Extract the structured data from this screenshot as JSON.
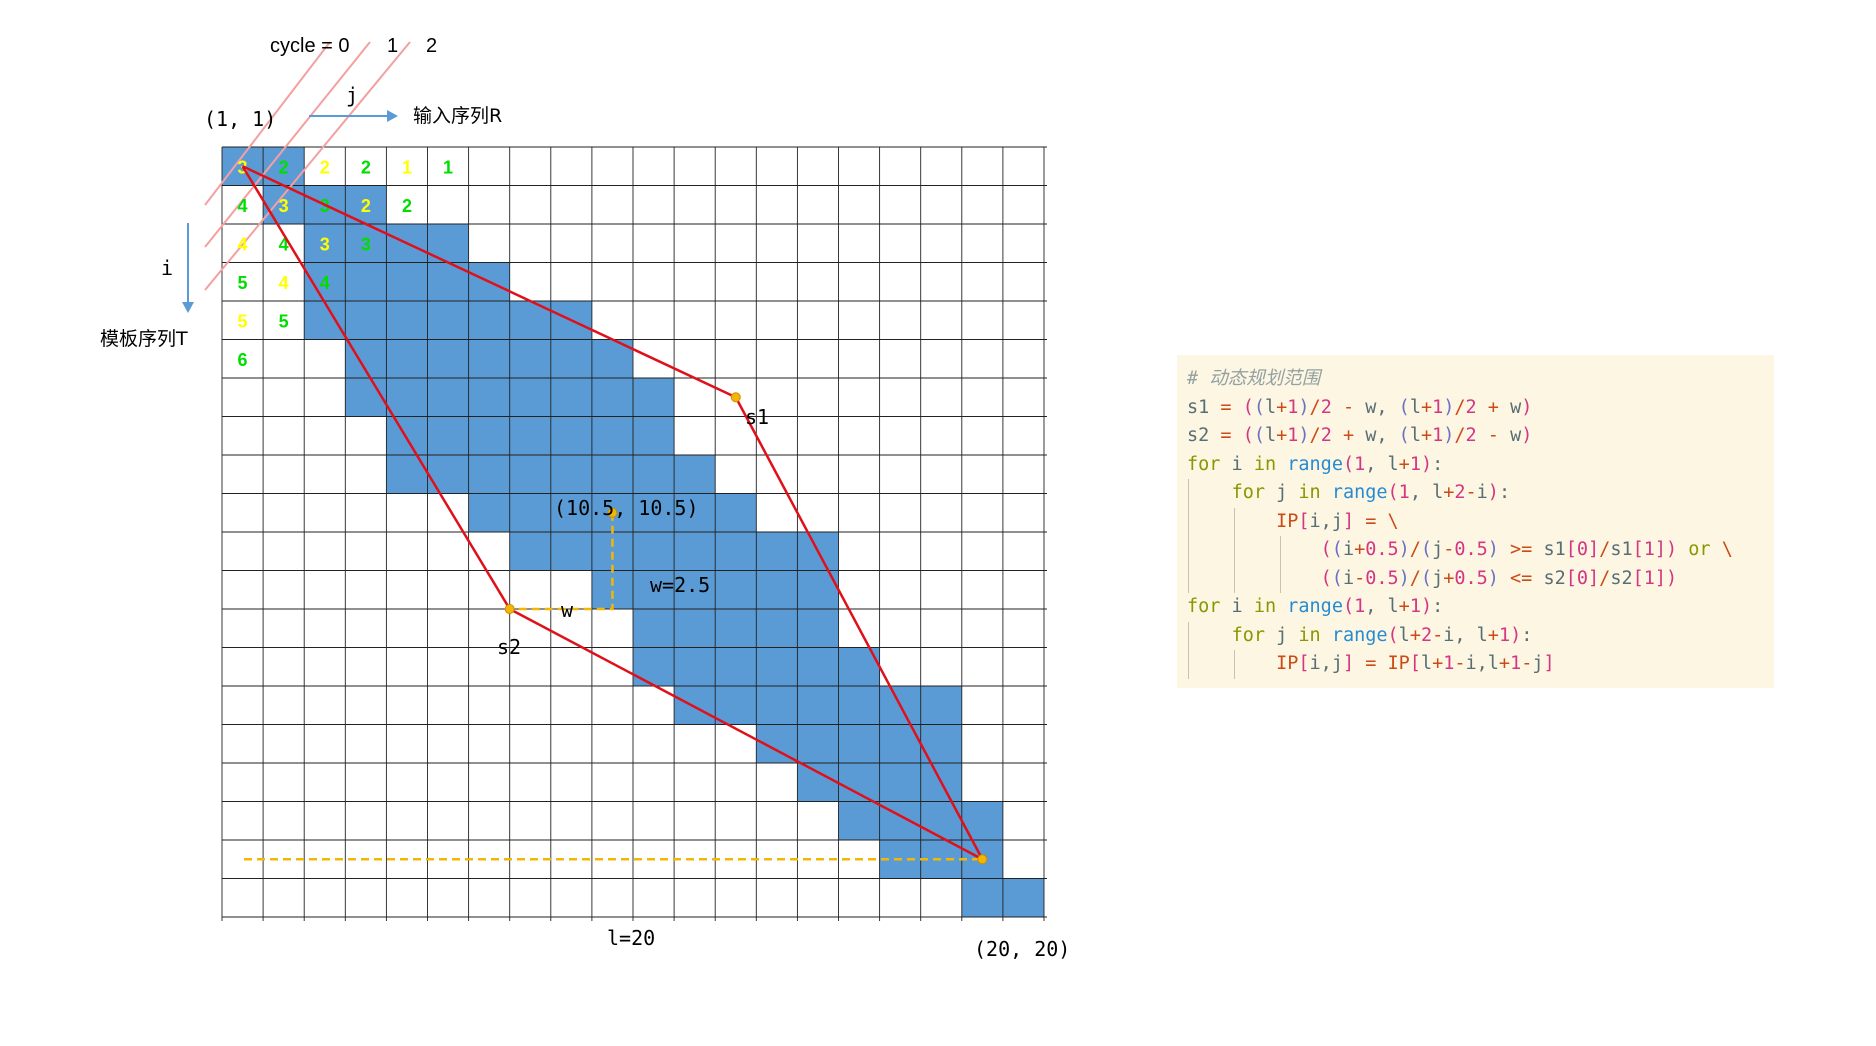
{
  "grid": {
    "size": 20,
    "corner_top_left": "(1, 1)",
    "corner_bottom_right": "(20, 20)",
    "length_label": "l=20",
    "center_label": "(10.5, 10.5)",
    "w_label": "w",
    "w_value_label": "w=2.5",
    "s1_label": "s1",
    "s2_label": "s2",
    "cell_fill": "#5b9bd5",
    "line_color": "#e0101a",
    "dash_color": "#f2b705",
    "filled_rows": [
      [
        1,
        2
      ],
      [
        2,
        4
      ],
      [
        3,
        6
      ],
      [
        3,
        7
      ],
      [
        3,
        9
      ],
      [
        4,
        10
      ],
      [
        4,
        11
      ],
      [
        5,
        11
      ],
      [
        5,
        12
      ],
      [
        7,
        13
      ],
      [
        8,
        15
      ],
      [
        10,
        15
      ],
      [
        11,
        15
      ],
      [
        11,
        16
      ],
      [
        12,
        18
      ],
      [
        14,
        18
      ],
      [
        15,
        18
      ],
      [
        16,
        19
      ],
      [
        17,
        19
      ],
      [
        19,
        20
      ]
    ],
    "cycle_numbers": [
      {
        "row": 1,
        "col": 1,
        "text": "3",
        "color": "#ffff00"
      },
      {
        "row": 1,
        "col": 2,
        "text": "2",
        "color": "#00dd00"
      },
      {
        "row": 1,
        "col": 3,
        "text": "2",
        "color": "#ffff00"
      },
      {
        "row": 1,
        "col": 4,
        "text": "2",
        "color": "#00dd00"
      },
      {
        "row": 1,
        "col": 5,
        "text": "1",
        "color": "#ffff00"
      },
      {
        "row": 1,
        "col": 6,
        "text": "1",
        "color": "#00dd00"
      },
      {
        "row": 2,
        "col": 1,
        "text": "4",
        "color": "#00dd00"
      },
      {
        "row": 2,
        "col": 2,
        "text": "3",
        "color": "#ffff00"
      },
      {
        "row": 2,
        "col": 3,
        "text": "3",
        "color": "#00dd00"
      },
      {
        "row": 2,
        "col": 4,
        "text": "2",
        "color": "#ffff00"
      },
      {
        "row": 2,
        "col": 5,
        "text": "2",
        "color": "#00dd00"
      },
      {
        "row": 3,
        "col": 1,
        "text": "4",
        "color": "#ffff00"
      },
      {
        "row": 3,
        "col": 2,
        "text": "4",
        "color": "#00dd00"
      },
      {
        "row": 3,
        "col": 3,
        "text": "3",
        "color": "#ffff00"
      },
      {
        "row": 3,
        "col": 4,
        "text": "3",
        "color": "#00dd00"
      },
      {
        "row": 4,
        "col": 1,
        "text": "5",
        "color": "#00dd00"
      },
      {
        "row": 4,
        "col": 2,
        "text": "4",
        "color": "#ffff00"
      },
      {
        "row": 4,
        "col": 3,
        "text": "4",
        "color": "#00dd00"
      },
      {
        "row": 5,
        "col": 1,
        "text": "5",
        "color": "#ffff00"
      },
      {
        "row": 5,
        "col": 2,
        "text": "5",
        "color": "#00dd00"
      },
      {
        "row": 6,
        "col": 1,
        "text": "6",
        "color": "#00dd00"
      }
    ],
    "points": {
      "top_left": [
        1.5,
        1.5
      ],
      "s1": [
        7.5,
        13.5
      ],
      "center": [
        10.5,
        10.5
      ],
      "s2": [
        13.0,
        8.0
      ],
      "bottom_right": [
        19.5,
        19.5
      ]
    }
  },
  "axes": {
    "cycle_label": "cycle = 0",
    "cycle_1": "1",
    "cycle_2": "2",
    "j_label": "j",
    "i_label": "i",
    "input_seq": "输入序列R",
    "template_seq": "模板序列T",
    "arrow_color": "#5b9bd5",
    "diag_line_color": "#f4a0a0"
  },
  "code": {
    "comment": "# 动态规划范围",
    "s1_prefix": "s1",
    "s2_prefix": "s2",
    "for_kw": "for",
    "in_kw": "in",
    "range_fn": "range",
    "or_kw": "or"
  }
}
